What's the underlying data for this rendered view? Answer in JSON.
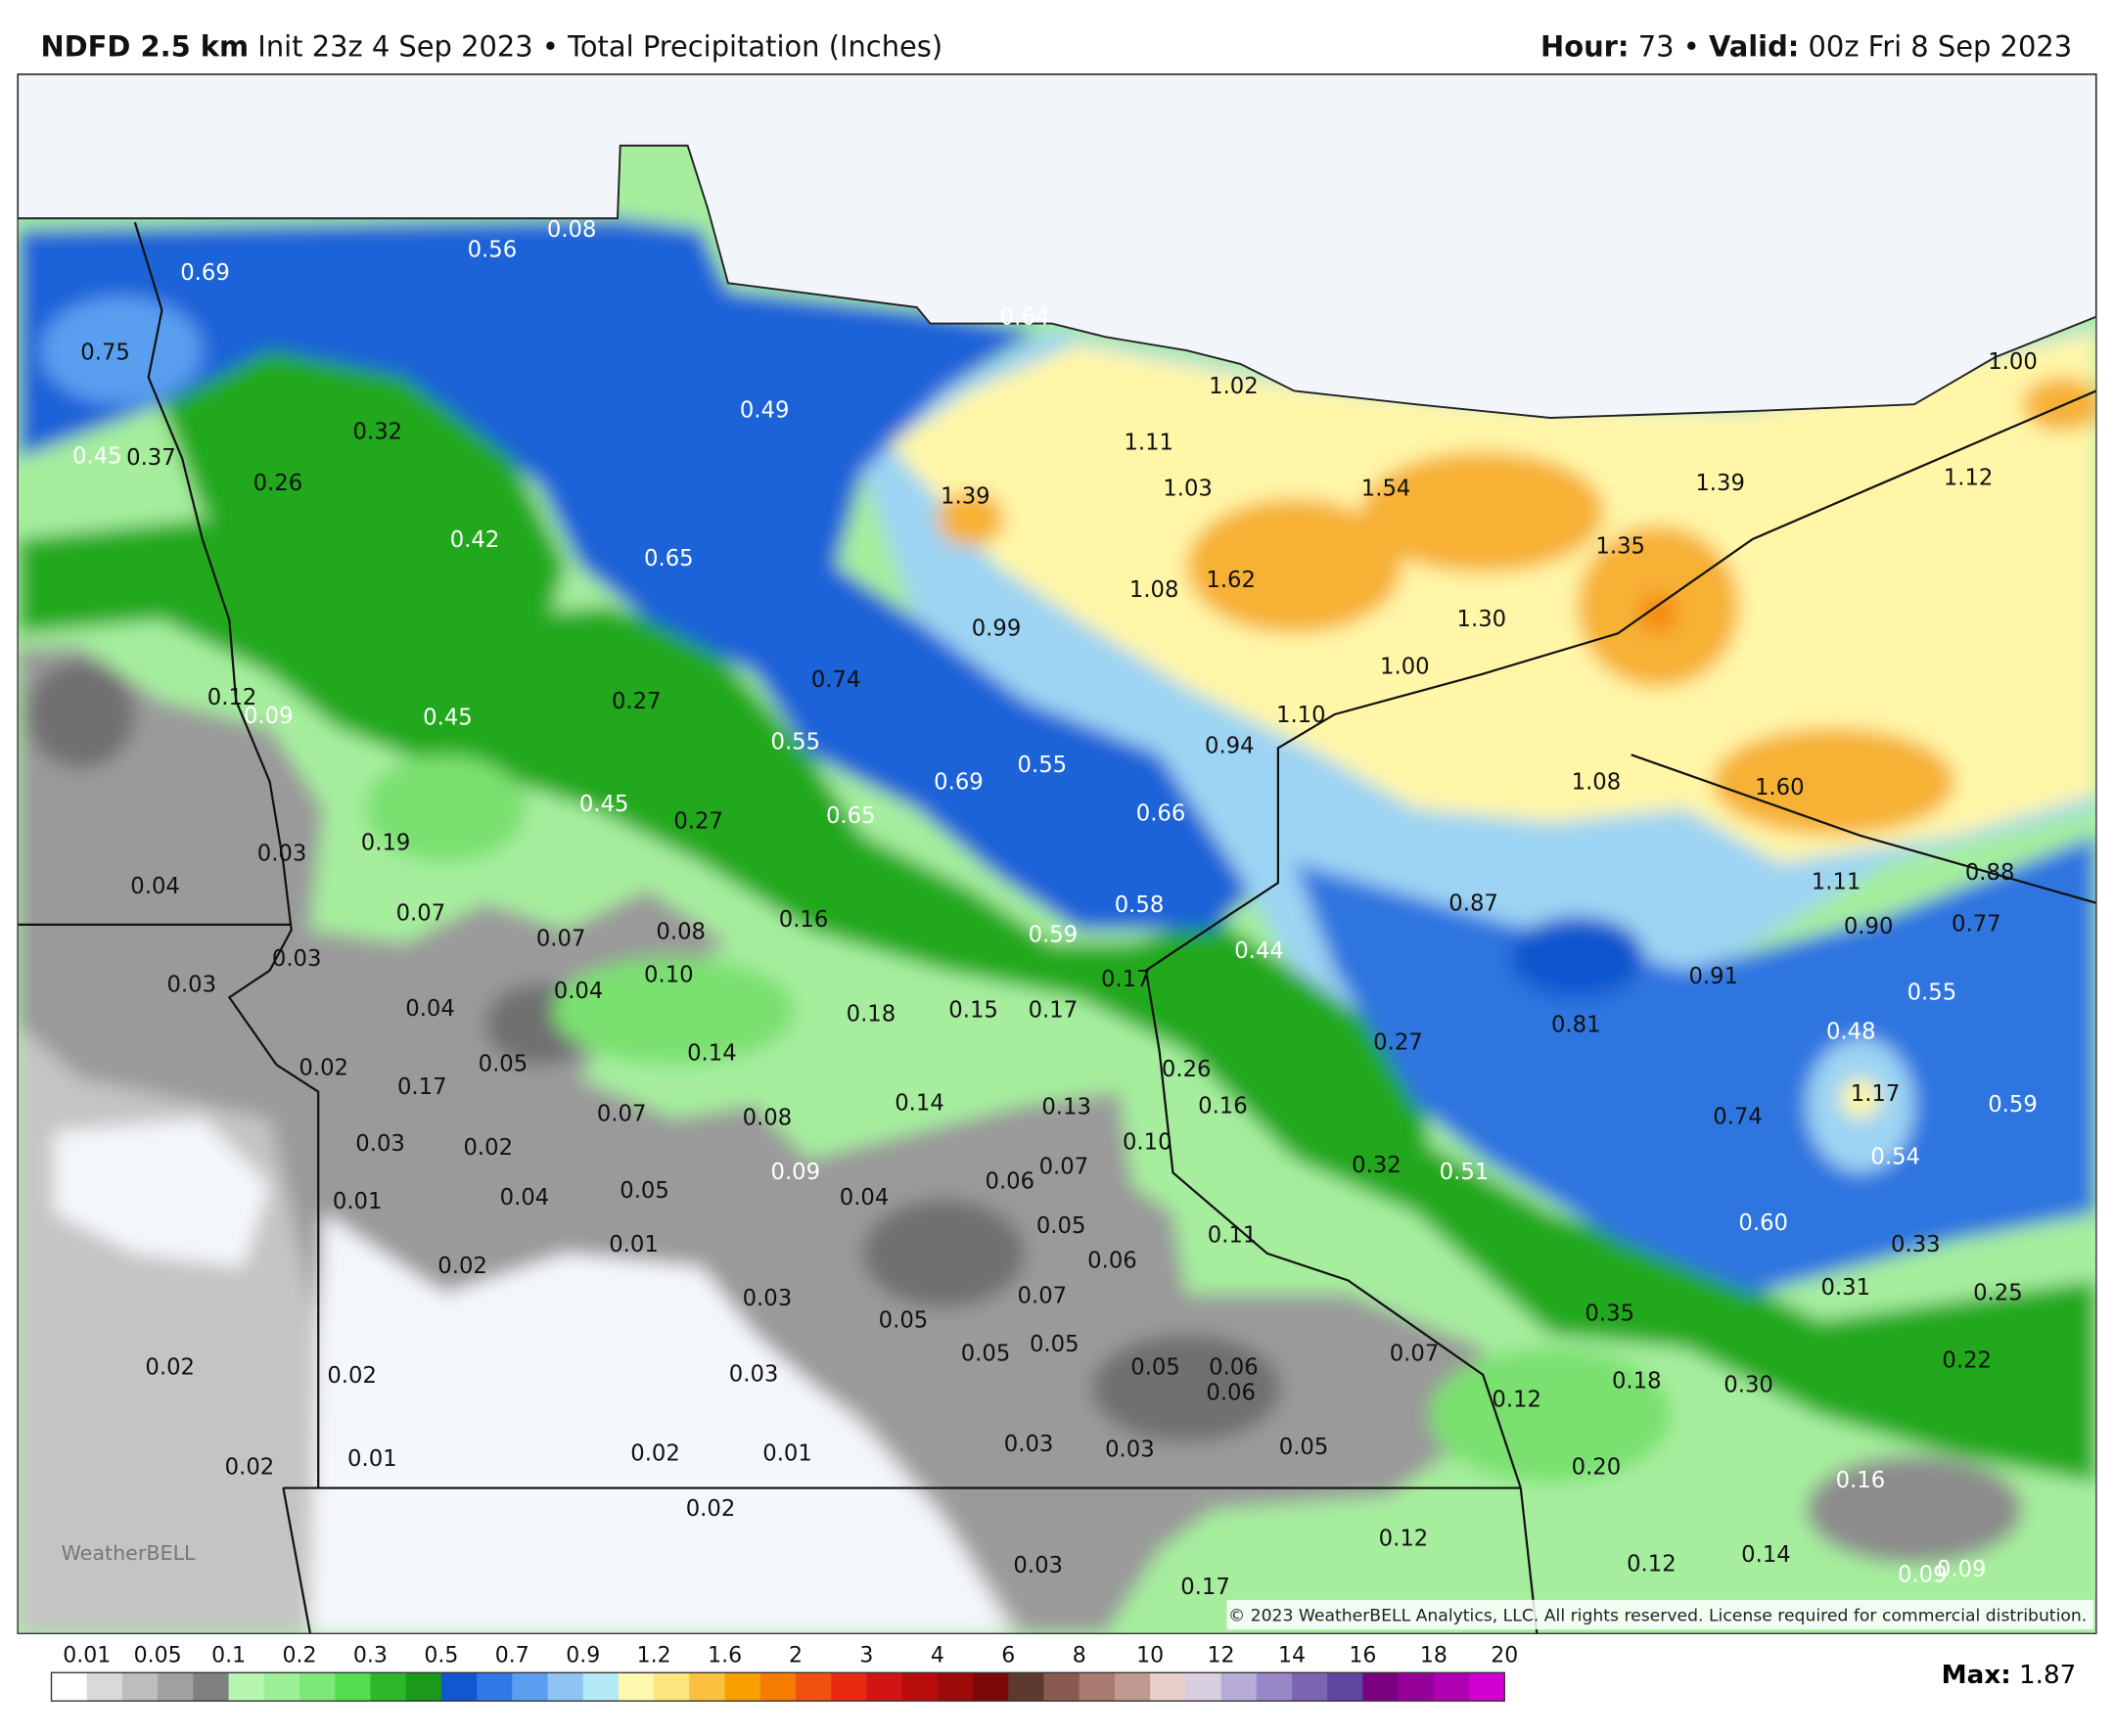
{
  "header": {
    "model": "NDFD 2.5 km",
    "init": "Init 23z 4 Sep 2023",
    "bullet": "•",
    "field": "Total Precipitation (Inches)",
    "hour_label": "Hour:",
    "hour": "73",
    "valid_label": "Valid:",
    "valid": "00z Fri 8 Sep 2023"
  },
  "map": {
    "labels": [
      "0.69",
      "0.56",
      "0.08",
      "0.75",
      "0.49",
      "0.64",
      "1.02",
      "1.00",
      "0.32",
      "1.11",
      "0.45",
      "0.37",
      "0.26",
      "1.39",
      "1.03",
      "1.54",
      "1.39",
      "1.12",
      "0.42",
      "0.65",
      "1.35",
      "1.08",
      "1.62",
      "0.99",
      "1.30",
      "0.12",
      "0.09",
      "0.27",
      "0.74",
      "1.00",
      "0.45",
      "1.10",
      "0.55",
      "0.94",
      "0.69",
      "0.55",
      "1.08",
      "1.60",
      "0.45",
      "0.27",
      "0.65",
      "0.66",
      "0.03",
      "0.19",
      "0.04",
      "0.16",
      "1.11",
      "0.88",
      "0.07",
      "0.58",
      "0.87",
      "0.90",
      "0.77",
      "0.07",
      "0.08",
      "0.59",
      "0.44",
      "0.03",
      "0.03",
      "0.10",
      "0.04",
      "0.17",
      "0.91",
      "0.55",
      "0.04",
      "0.18",
      "0.15",
      "0.17",
      "0.81",
      "0.48",
      "0.14",
      "0.27",
      "0.02",
      "0.05",
      "0.26",
      "0.17",
      "1.17",
      "0.59",
      "0.07",
      "0.08",
      "0.14",
      "0.13",
      "0.16",
      "0.74",
      "0.03",
      "0.02",
      "0.10",
      "0.54",
      "0.09",
      "0.06",
      "0.07",
      "0.32",
      "0.51",
      "0.01",
      "0.04",
      "0.05",
      "0.04",
      "0.05",
      "0.11",
      "0.60",
      "0.01",
      "0.06",
      "0.33",
      "0.02",
      "0.03",
      "0.07",
      "0.31",
      "0.25",
      "0.05",
      "0.35",
      "0.05",
      "0.05",
      "0.07",
      "0.02",
      "0.02",
      "0.03",
      "0.05",
      "0.06",
      "0.06",
      "0.22",
      "0.18",
      "0.30",
      "0.12",
      "0.01",
      "0.02",
      "0.02",
      "0.01",
      "0.03",
      "0.03",
      "0.05",
      "0.20",
      "0.16",
      "0.02",
      "0.12",
      "0.03",
      "0.12",
      "0.14",
      "0.17",
      "0.09",
      "0.09"
    ],
    "copyright": "© 2023 WeatherBELL Analytics, LLC. All rights reserved. License required for commercial distribution.",
    "logo": "WeatherBELL"
  },
  "legend": {
    "ticks": [
      "0.01",
      "0.05",
      "0.1",
      "0.2",
      "0.3",
      "0.5",
      "0.7",
      "0.9",
      "1.2",
      "1.6",
      "2",
      "3",
      "4",
      "6",
      "8",
      "10",
      "12",
      "14",
      "16",
      "18",
      "20"
    ],
    "colors": [
      "#ffffff",
      "#d9d9d9",
      "#bdbdbd",
      "#a0a0a0",
      "#808080",
      "#b5f5b0",
      "#9ef098",
      "#7de878",
      "#55dd50",
      "#2db82a",
      "#1a9a18",
      "#1157cf",
      "#2f79e6",
      "#5a9ef0",
      "#8fc4f5",
      "#b3e8f7",
      "#fff9b0",
      "#fde680",
      "#fbc040",
      "#f7a000",
      "#f57c00",
      "#f05010",
      "#e82a10",
      "#d11515",
      "#b80c0c",
      "#9c0a0a",
      "#7a0808",
      "#5c3a30",
      "#8a5a50",
      "#a87a70",
      "#c09a90",
      "#e6d0c8",
      "#d8d0e0",
      "#b8acd8",
      "#9888c8",
      "#7a66b4",
      "#5c46a0",
      "#7a0080",
      "#950099",
      "#b000b3",
      "#d000d0"
    ]
  },
  "max": {
    "label": "Max:",
    "value": "1.87"
  }
}
